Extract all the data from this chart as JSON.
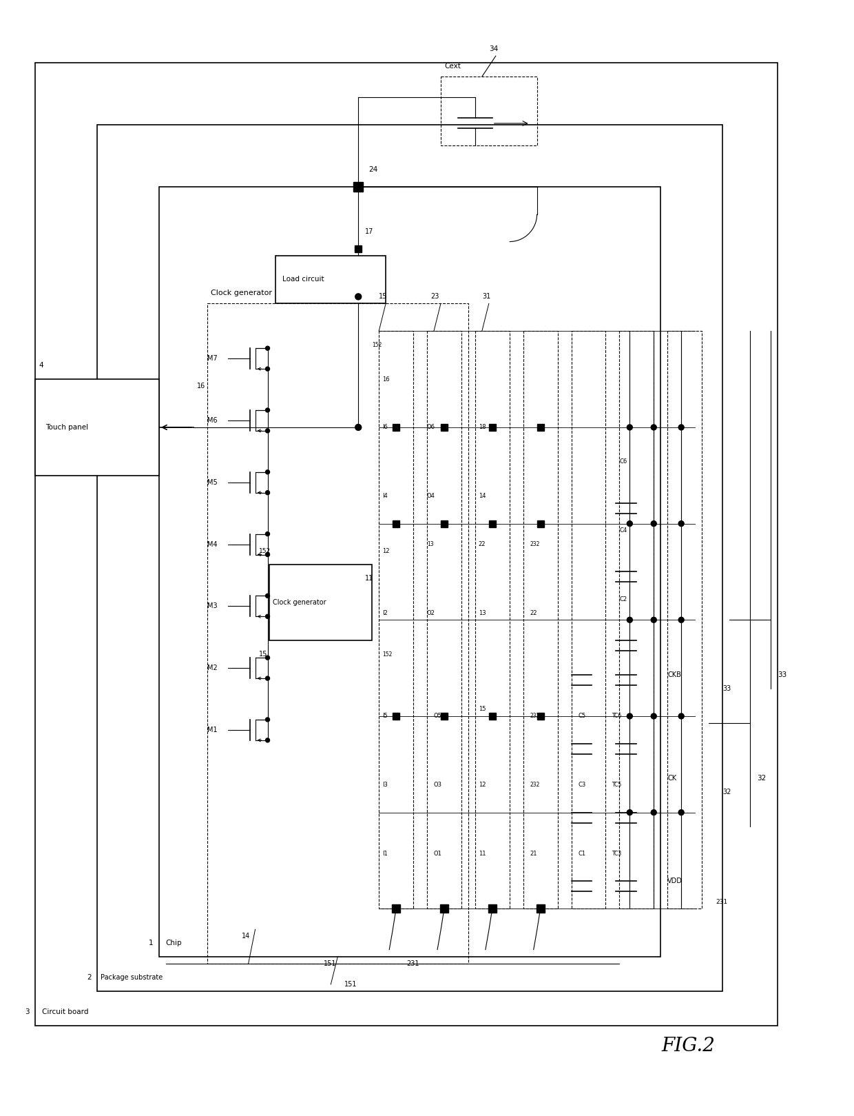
{
  "fig_width": 12.4,
  "fig_height": 16.19,
  "bg_color": "#ffffff",
  "title": "FIG.2",
  "labels": {
    "touch_panel": "Touch panel",
    "circuit_board": "Circuit board",
    "package_substrate": "Package substrate",
    "chip": "Chip",
    "clock_generator_outer": "Clock generator",
    "clock_generator_inner": "Clock generator",
    "load_circuit": "Load circuit",
    "cext": "Cext",
    "vdd": "VDD",
    "ck": "CK",
    "ckb": "CKB"
  }
}
